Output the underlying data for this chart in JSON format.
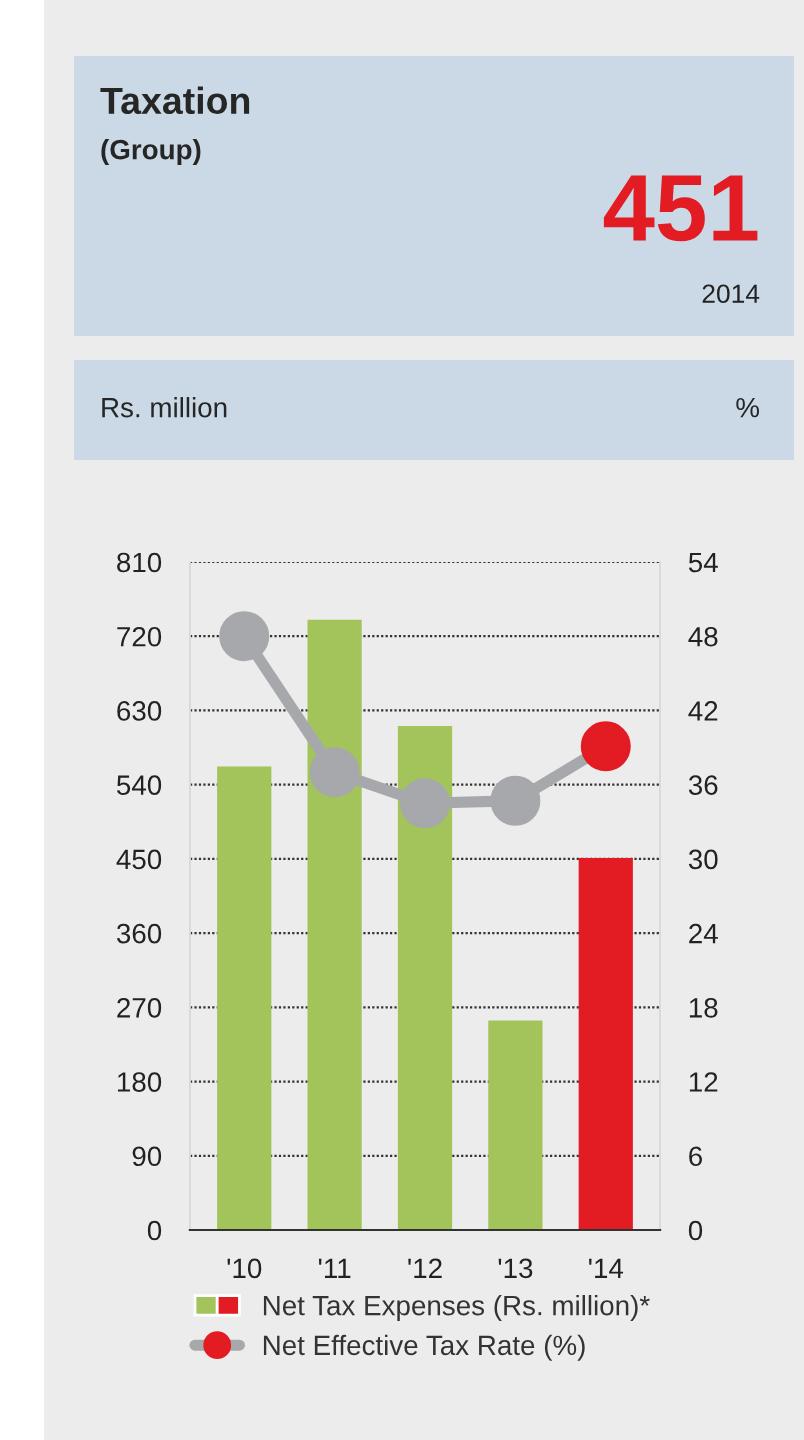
{
  "chart_data": {
    "type": "bar",
    "title": "Taxation",
    "subtitle": "(Group)",
    "annotations": [
      "451",
      "2014"
    ],
    "ylabel": "Rs. million",
    "y2label": "%",
    "categories": [
      "'10",
      "'11",
      "'12",
      "'13",
      "'14"
    ],
    "series": [
      {
        "name": "Net Tax Expenses (Rs. million)*",
        "colors": [
          "#a2c45a",
          "#a2c45a",
          "#a2c45a",
          "#a2c45a",
          "#e31b23"
        ],
        "values": [
          562,
          740,
          611,
          254,
          451
        ]
      },
      {
        "name": "Net Effective Tax Rate (%)",
        "type": "line",
        "axis": "y2",
        "color": "#a7a8ab",
        "colors": [
          "#a7a8ab",
          "#a7a8ab",
          "#a7a8ab",
          "#a7a8ab",
          "#e31b23"
        ],
        "values": [
          48.0,
          37.0,
          34.5,
          34.7,
          39.1
        ]
      }
    ],
    "ylim": [
      0,
      810
    ],
    "yticks": [
      0,
      90,
      180,
      270,
      360,
      450,
      540,
      630,
      720,
      810
    ],
    "y2lim": [
      0,
      54
    ],
    "y2ticks": [
      0,
      6,
      12,
      18,
      24,
      30,
      36,
      42,
      48,
      54
    ],
    "grid": "y",
    "legend": "bottom",
    "marker": "circle"
  }
}
